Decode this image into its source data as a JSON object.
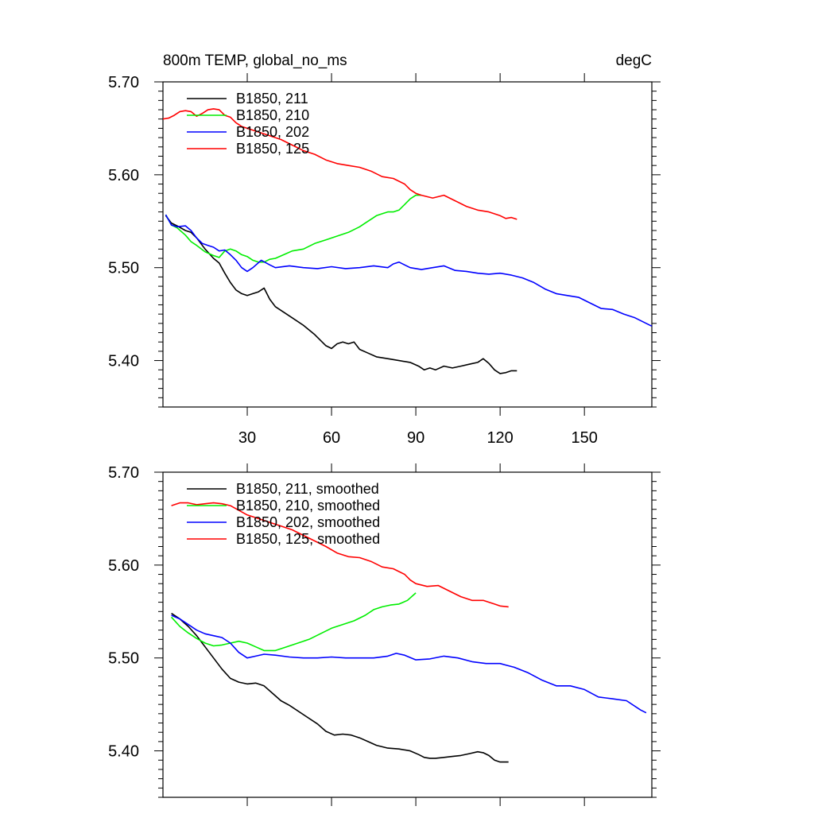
{
  "header": {
    "left": "800m TEMP, global_no_ms",
    "right": "degC"
  },
  "chart_data": [
    {
      "type": "line",
      "title": "800m TEMP, global_no_ms",
      "units": "degC",
      "xlim": [
        0,
        174
      ],
      "ylim": [
        5.35,
        5.7
      ],
      "x_ticks": [
        30,
        60,
        90,
        120,
        150
      ],
      "x_tick_labels": [
        "30",
        "60",
        "90",
        "120",
        "150"
      ],
      "y_ticks": [
        5.4,
        5.5,
        5.6,
        5.7
      ],
      "y_tick_labels": [
        "5.40",
        "5.50",
        "5.60",
        "5.70"
      ],
      "legend_position": "top-left",
      "series": [
        {
          "name": "B1850, 211",
          "color": "#000000",
          "x": [
            1,
            3,
            5,
            8,
            10,
            12,
            15,
            18,
            20,
            22,
            24,
            26,
            28,
            30,
            32,
            34,
            36,
            38,
            40,
            43,
            46,
            50,
            54,
            58,
            60,
            62,
            64,
            66,
            68,
            70,
            73,
            76,
            80,
            84,
            88,
            91,
            93,
            95,
            97,
            100,
            103,
            106,
            109,
            112,
            114,
            116,
            118,
            120,
            122,
            124,
            126
          ],
          "y": [
            5.556,
            5.548,
            5.545,
            5.54,
            5.538,
            5.532,
            5.52,
            5.51,
            5.505,
            5.494,
            5.484,
            5.476,
            5.472,
            5.47,
            5.472,
            5.474,
            5.478,
            5.466,
            5.458,
            5.452,
            5.446,
            5.438,
            5.428,
            5.416,
            5.413,
            5.418,
            5.42,
            5.418,
            5.42,
            5.412,
            5.408,
            5.404,
            5.402,
            5.4,
            5.398,
            5.394,
            5.39,
            5.392,
            5.39,
            5.394,
            5.392,
            5.394,
            5.396,
            5.398,
            5.402,
            5.397,
            5.39,
            5.386,
            5.387,
            5.389,
            5.389
          ]
        },
        {
          "name": "B1850, 210",
          "color": "#00ee00",
          "x": [
            1,
            3,
            5,
            8,
            10,
            12,
            15,
            18,
            20,
            22,
            24,
            26,
            28,
            30,
            32,
            34,
            36,
            38,
            40,
            43,
            46,
            50,
            54,
            58,
            62,
            66,
            70,
            72,
            74,
            76,
            78,
            80,
            82,
            84,
            86,
            88,
            90,
            92
          ],
          "y": [
            5.557,
            5.546,
            5.543,
            5.535,
            5.528,
            5.524,
            5.517,
            5.513,
            5.511,
            5.518,
            5.52,
            5.518,
            5.514,
            5.512,
            5.508,
            5.506,
            5.506,
            5.509,
            5.51,
            5.514,
            5.518,
            5.52,
            5.526,
            5.53,
            5.534,
            5.538,
            5.544,
            5.548,
            5.552,
            5.556,
            5.558,
            5.56,
            5.56,
            5.562,
            5.568,
            5.574,
            5.578,
            5.578
          ]
        },
        {
          "name": "B1850, 202",
          "color": "#0000ff",
          "x": [
            1,
            3,
            5,
            8,
            10,
            12,
            14,
            16,
            18,
            20,
            22,
            24,
            26,
            28,
            30,
            32,
            35,
            38,
            40,
            45,
            50,
            55,
            60,
            65,
            70,
            75,
            80,
            82,
            84,
            88,
            92,
            96,
            100,
            104,
            108,
            112,
            116,
            120,
            124,
            128,
            132,
            136,
            140,
            144,
            148,
            152,
            156,
            160,
            164,
            168,
            172,
            174
          ],
          "y": [
            5.557,
            5.546,
            5.544,
            5.545,
            5.54,
            5.532,
            5.526,
            5.524,
            5.522,
            5.518,
            5.519,
            5.514,
            5.508,
            5.5,
            5.496,
            5.5,
            5.508,
            5.503,
            5.5,
            5.502,
            5.5,
            5.499,
            5.501,
            5.499,
            5.5,
            5.502,
            5.5,
            5.504,
            5.506,
            5.5,
            5.498,
            5.5,
            5.502,
            5.497,
            5.496,
            5.494,
            5.493,
            5.494,
            5.492,
            5.489,
            5.484,
            5.477,
            5.472,
            5.47,
            5.468,
            5.462,
            5.456,
            5.455,
            5.45,
            5.446,
            5.44,
            5.437
          ]
        },
        {
          "name": "B1850, 125",
          "color": "#ff0000",
          "x": [
            0,
            2,
            4,
            6,
            8,
            10,
            12,
            14,
            16,
            18,
            20,
            22,
            24,
            26,
            28,
            30,
            34,
            38,
            42,
            46,
            50,
            54,
            58,
            62,
            66,
            70,
            74,
            78,
            82,
            86,
            88,
            90,
            92,
            96,
            100,
            104,
            108,
            112,
            116,
            120,
            122,
            124,
            126
          ],
          "y": [
            5.66,
            5.661,
            5.664,
            5.668,
            5.669,
            5.668,
            5.663,
            5.666,
            5.67,
            5.671,
            5.67,
            5.664,
            5.662,
            5.656,
            5.652,
            5.65,
            5.646,
            5.642,
            5.638,
            5.632,
            5.626,
            5.622,
            5.616,
            5.612,
            5.61,
            5.608,
            5.604,
            5.598,
            5.596,
            5.59,
            5.584,
            5.58,
            5.578,
            5.575,
            5.578,
            5.572,
            5.566,
            5.562,
            5.56,
            5.556,
            5.553,
            5.554,
            5.552
          ]
        }
      ]
    },
    {
      "type": "line",
      "xlim": [
        0,
        174
      ],
      "ylim": [
        5.35,
        5.7
      ],
      "x_ticks": [
        30,
        60,
        90,
        120,
        150
      ],
      "y_ticks": [
        5.4,
        5.5,
        5.6,
        5.7
      ],
      "y_tick_labels": [
        "5.40",
        "5.50",
        "5.60",
        "5.70"
      ],
      "legend_position": "top-left",
      "series": [
        {
          "name": "B1850, 211, smoothed",
          "color": "#000000",
          "x": [
            3,
            6,
            9,
            12,
            15,
            18,
            21,
            24,
            27,
            30,
            33,
            36,
            39,
            42,
            45,
            50,
            55,
            58,
            61,
            64,
            67,
            70,
            73,
            76,
            80,
            84,
            88,
            91,
            93,
            95,
            97,
            100,
            103,
            106,
            109,
            112,
            114,
            116,
            118,
            120,
            122,
            123
          ],
          "y": [
            5.548,
            5.542,
            5.534,
            5.524,
            5.512,
            5.5,
            5.488,
            5.478,
            5.474,
            5.472,
            5.473,
            5.47,
            5.462,
            5.454,
            5.449,
            5.439,
            5.429,
            5.421,
            5.417,
            5.418,
            5.417,
            5.414,
            5.41,
            5.406,
            5.403,
            5.402,
            5.4,
            5.396,
            5.393,
            5.392,
            5.392,
            5.393,
            5.394,
            5.395,
            5.397,
            5.399,
            5.398,
            5.395,
            5.39,
            5.388,
            5.388,
            5.388
          ]
        },
        {
          "name": "B1850, 210, smoothed",
          "color": "#00ee00",
          "x": [
            3,
            6,
            9,
            12,
            15,
            18,
            21,
            24,
            27,
            30,
            33,
            36,
            40,
            44,
            48,
            52,
            56,
            60,
            64,
            68,
            72,
            75,
            78,
            81,
            84,
            87,
            90
          ],
          "y": [
            5.544,
            5.534,
            5.527,
            5.521,
            5.516,
            5.513,
            5.514,
            5.516,
            5.518,
            5.516,
            5.512,
            5.508,
            5.508,
            5.512,
            5.516,
            5.52,
            5.526,
            5.532,
            5.536,
            5.54,
            5.546,
            5.552,
            5.555,
            5.557,
            5.558,
            5.562,
            5.57
          ]
        },
        {
          "name": "B1850, 202, smoothed",
          "color": "#0000ff",
          "x": [
            3,
            6,
            9,
            12,
            15,
            18,
            21,
            24,
            27,
            30,
            33,
            36,
            40,
            45,
            50,
            55,
            60,
            65,
            70,
            75,
            80,
            83,
            86,
            90,
            95,
            100,
            105,
            110,
            115,
            120,
            125,
            130,
            135,
            140,
            145,
            150,
            155,
            160,
            165,
            170,
            172
          ],
          "y": [
            5.546,
            5.542,
            5.536,
            5.53,
            5.526,
            5.524,
            5.522,
            5.516,
            5.506,
            5.5,
            5.502,
            5.504,
            5.503,
            5.501,
            5.5,
            5.5,
            5.501,
            5.5,
            5.5,
            5.5,
            5.502,
            5.505,
            5.503,
            5.498,
            5.499,
            5.502,
            5.5,
            5.496,
            5.494,
            5.494,
            5.49,
            5.484,
            5.476,
            5.47,
            5.47,
            5.466,
            5.458,
            5.456,
            5.454,
            5.444,
            5.441
          ]
        },
        {
          "name": "B1850, 125, smoothed",
          "color": "#ff0000",
          "x": [
            3,
            6,
            9,
            12,
            15,
            18,
            21,
            24,
            27,
            30,
            34,
            38,
            42,
            46,
            50,
            54,
            58,
            62,
            66,
            70,
            74,
            78,
            82,
            86,
            88,
            90,
            94,
            98,
            102,
            106,
            110,
            114,
            118,
            120,
            123
          ],
          "y": [
            5.664,
            5.667,
            5.667,
            5.665,
            5.666,
            5.667,
            5.666,
            5.664,
            5.659,
            5.654,
            5.65,
            5.646,
            5.642,
            5.638,
            5.632,
            5.626,
            5.62,
            5.613,
            5.609,
            5.608,
            5.604,
            5.598,
            5.596,
            5.59,
            5.584,
            5.58,
            5.577,
            5.578,
            5.572,
            5.566,
            5.562,
            5.562,
            5.558,
            5.556,
            5.555
          ]
        }
      ]
    }
  ]
}
